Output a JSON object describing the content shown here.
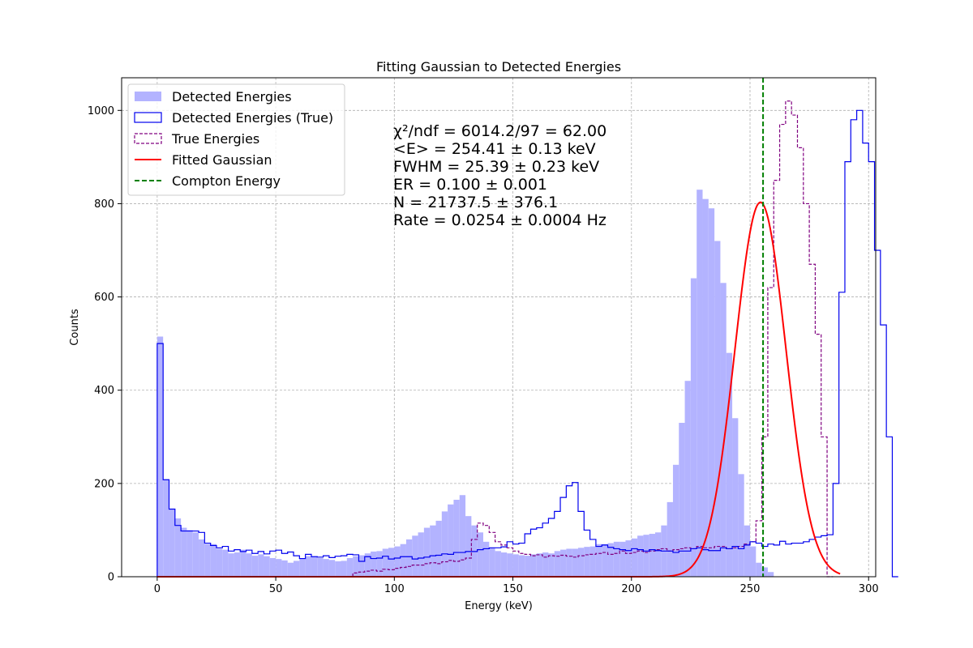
{
  "chart_data": {
    "type": "histogram",
    "title": "Fitting Gaussian to Detected Energies",
    "xlabel": "Energy (keV)",
    "ylabel": "Counts",
    "xlim": [
      -15,
      303
    ],
    "ylim": [
      0,
      1070
    ],
    "xticks": [
      0,
      50,
      100,
      150,
      200,
      250,
      300
    ],
    "yticks": [
      0,
      200,
      400,
      600,
      800,
      1000
    ],
    "grid": true,
    "legend_position": "top-left",
    "bin_width": 2.5,
    "legend": [
      {
        "label": "Detected Energies",
        "style": "filled",
        "color": "#b3b3ff"
      },
      {
        "label": "Detected Energies (True)",
        "style": "step",
        "color": "#0000ee"
      },
      {
        "label": "True Energies",
        "style": "dashed-step",
        "color": "#800080"
      },
      {
        "label": "Fitted Gaussian",
        "style": "line",
        "color": "#ff0000"
      },
      {
        "label": "Compton Energy",
        "style": "dashed-line",
        "color": "#008000"
      }
    ],
    "annotations": [
      "χ²/ndf = 6014.2/97 = 62.00",
      "<E> = 254.41 ± 0.13 keV",
      "FWHM = 25.39 ± 0.23 keV",
      "ER = 0.100 ± 0.001",
      "N = 21737.5 ± 376.1",
      "Rate = 0.0254 ± 0.0004 Hz"
    ],
    "compton_energy": 255.5,
    "gaussian": {
      "mean": 254.41,
      "amplitude": 803,
      "fwhm": 25.39,
      "x_range": [
        0,
        288
      ]
    },
    "detected_bins_start": 0,
    "detected_values": [
      515,
      208,
      145,
      125,
      105,
      100,
      95,
      80,
      70,
      70,
      60,
      58,
      50,
      52,
      58,
      50,
      45,
      48,
      44,
      40,
      38,
      35,
      30,
      34,
      40,
      44,
      42,
      40,
      38,
      36,
      33,
      34,
      40,
      44,
      46,
      50,
      54,
      55,
      60,
      62,
      65,
      70,
      80,
      88,
      95,
      105,
      110,
      120,
      140,
      155,
      165,
      175,
      130,
      110,
      95,
      75,
      62,
      55,
      52,
      50,
      48,
      46,
      45,
      48,
      50,
      52,
      50,
      55,
      58,
      60,
      60,
      62,
      64,
      65,
      70,
      70,
      72,
      75,
      75,
      78,
      82,
      88,
      90,
      92,
      95,
      110,
      160,
      240,
      330,
      420,
      640,
      830,
      810,
      790,
      720,
      630,
      480,
      340,
      220,
      110,
      65,
      30,
      20,
      10
    ],
    "detected_true_bins_start": 0,
    "detected_true_values": [
      500,
      208,
      145,
      110,
      98,
      98,
      98,
      95,
      72,
      67,
      62,
      65,
      55,
      58,
      54,
      57,
      50,
      54,
      49,
      55,
      57,
      50,
      53,
      45,
      39,
      48,
      43,
      42,
      45,
      41,
      44,
      45,
      48,
      47,
      33,
      43,
      39,
      40,
      44,
      38,
      40,
      43,
      43,
      38,
      40,
      42,
      45,
      46,
      49,
      48,
      52,
      52,
      54,
      54,
      58,
      60,
      62,
      62,
      64,
      75,
      70,
      72,
      92,
      102,
      105,
      115,
      125,
      140,
      170,
      195,
      202,
      140,
      100,
      80,
      65,
      68,
      63,
      60,
      58,
      56,
      60,
      58,
      55,
      58,
      56,
      55,
      55,
      52,
      55,
      55,
      60,
      62,
      58,
      56,
      56,
      62,
      60,
      65,
      60,
      68,
      75,
      72,
      65,
      70,
      68,
      76,
      70,
      72,
      72,
      75,
      80,
      85,
      88,
      90,
      200,
      610,
      890,
      980,
      1000,
      930,
      890,
      700,
      540,
      300,
      0
    ],
    "true_bins_start": 82.5,
    "true_values": [
      8,
      10,
      12,
      14,
      12,
      16,
      15,
      18,
      20,
      22,
      25,
      25,
      28,
      30,
      28,
      32,
      35,
      33,
      36,
      40,
      80,
      115,
      110,
      95,
      75,
      68,
      62,
      55,
      50,
      48,
      45,
      47,
      42,
      45,
      44,
      46,
      44,
      42,
      45,
      47,
      48,
      50,
      52,
      48,
      50,
      55,
      50,
      52,
      55,
      52,
      55,
      58,
      60,
      55,
      58,
      60,
      62,
      60,
      65,
      62,
      62,
      65,
      65,
      60,
      62,
      65,
      70,
      75,
      120,
      300,
      620,
      850,
      970,
      1020,
      990,
      920,
      800,
      670,
      520,
      300,
      0
    ]
  }
}
